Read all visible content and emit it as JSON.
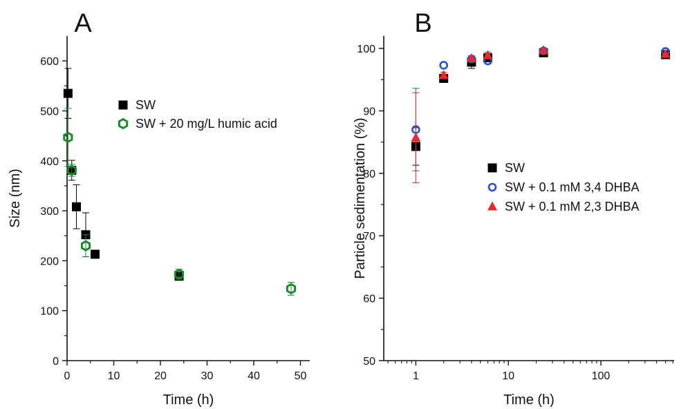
{
  "colors": {
    "sw": "#000000",
    "humic": "#1e8a2e",
    "dhba34": "#2652c8",
    "dhba23": "#e8282a",
    "axis": "#111111"
  },
  "chart_data": [
    {
      "type": "scatter",
      "panel_label": "A",
      "xlabel": "Time (h)",
      "ylabel": "Size (nm)",
      "xlim": [
        0,
        52
      ],
      "ylim": [
        0,
        650
      ],
      "x_scale": "linear",
      "xticks": [
        0,
        10,
        20,
        30,
        40,
        50
      ],
      "yticks": [
        0,
        100,
        200,
        300,
        400,
        500,
        600
      ],
      "grid": false,
      "legend_position": "top-right",
      "series": [
        {
          "name": "SW",
          "marker": "square-filled",
          "color": "#000000",
          "points": [
            {
              "x": 0.2,
              "y": 535,
              "err": 50
            },
            {
              "x": 1.0,
              "y": 381,
              "err": 20
            },
            {
              "x": 2.0,
              "y": 308,
              "err": 44
            },
            {
              "x": 4.0,
              "y": 252,
              "err": 44
            },
            {
              "x": 6.0,
              "y": 213,
              "err": 0
            },
            {
              "x": 24.0,
              "y": 169,
              "err": 0
            }
          ]
        },
        {
          "name": "SW + 20 mg/L humic acid",
          "marker": "hexagon-open",
          "color": "#1e8a2e",
          "points": [
            {
              "x": 0.2,
              "y": 447,
              "err": 58
            },
            {
              "x": 1.0,
              "y": 381,
              "err": 12
            },
            {
              "x": 4.0,
              "y": 230,
              "err": 22
            },
            {
              "x": 24.0,
              "y": 173,
              "err": 10
            },
            {
              "x": 48.0,
              "y": 144,
              "err": 13
            }
          ]
        }
      ]
    },
    {
      "type": "scatter",
      "panel_label": "B",
      "xlabel": "Time (h)",
      "ylabel": "Particle sedimentation (%)",
      "xlim": [
        0.45,
        620
      ],
      "ylim": [
        50,
        102
      ],
      "x_scale": "log",
      "xticks": [
        1,
        10,
        100
      ],
      "xtick_labels": [
        "1",
        "10",
        "100"
      ],
      "yticks": [
        50,
        60,
        70,
        80,
        90,
        100
      ],
      "grid": false,
      "legend_position": "center-right",
      "series": [
        {
          "name": "SW",
          "marker": "square-filled",
          "color": "#000000",
          "points": [
            {
              "x": 1,
              "y": 84.3,
              "err": 3
            },
            {
              "x": 2,
              "y": 95.2,
              "err": 0.5
            },
            {
              "x": 4,
              "y": 97.8,
              "err": 1
            },
            {
              "x": 6,
              "y": 98.5,
              "err": 0
            },
            {
              "x": 24,
              "y": 99.3,
              "err": 0
            },
            {
              "x": 500,
              "y": 99.0,
              "err": 0
            }
          ]
        },
        {
          "name": "SW + 0.1 mM 3,4 DHBA",
          "marker": "circle-open",
          "color": "#2652c8",
          "points": [
            {
              "x": 1,
              "y": 87.0,
              "err": 6.6
            },
            {
              "x": 2,
              "y": 97.3,
              "err": 0
            },
            {
              "x": 4,
              "y": 98.3,
              "err": 0
            },
            {
              "x": 6,
              "y": 98.0,
              "err": 0
            },
            {
              "x": 24,
              "y": 99.6,
              "err": 0
            },
            {
              "x": 500,
              "y": 99.5,
              "err": 0
            }
          ]
        },
        {
          "name": "SW + 0.1 mM 2,3 DHBA",
          "marker": "triangle-filled",
          "color": "#e8282a",
          "points": [
            {
              "x": 1,
              "y": 85.7,
              "err": 7.2
            },
            {
              "x": 2,
              "y": 95.7,
              "err": 0.5
            },
            {
              "x": 4,
              "y": 98.4,
              "err": 0
            },
            {
              "x": 6,
              "y": 98.9,
              "err": 0.5
            },
            {
              "x": 24,
              "y": 99.7,
              "err": 0
            },
            {
              "x": 500,
              "y": 99.1,
              "err": 0
            }
          ]
        }
      ]
    }
  ]
}
